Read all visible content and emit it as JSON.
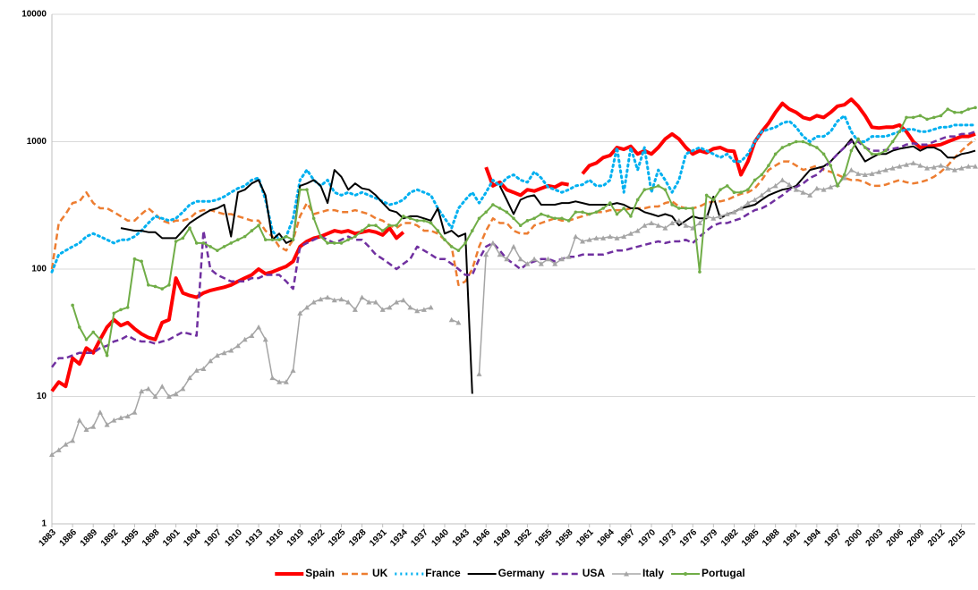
{
  "chart_data": {
    "type": "line",
    "x": [
      1883,
      1884,
      1885,
      1886,
      1887,
      1888,
      1889,
      1890,
      1891,
      1892,
      1893,
      1894,
      1895,
      1896,
      1897,
      1898,
      1899,
      1900,
      1901,
      1902,
      1903,
      1904,
      1905,
      1906,
      1907,
      1908,
      1909,
      1910,
      1911,
      1912,
      1913,
      1914,
      1915,
      1916,
      1917,
      1918,
      1919,
      1920,
      1921,
      1922,
      1923,
      1924,
      1925,
      1926,
      1927,
      1928,
      1929,
      1930,
      1931,
      1932,
      1933,
      1934,
      1935,
      1936,
      1937,
      1938,
      1939,
      1940,
      1941,
      1942,
      1943,
      1944,
      1945,
      1946,
      1947,
      1948,
      1949,
      1950,
      1951,
      1952,
      1953,
      1954,
      1955,
      1956,
      1957,
      1958,
      1959,
      1960,
      1961,
      1962,
      1963,
      1964,
      1965,
      1966,
      1967,
      1968,
      1969,
      1970,
      1971,
      1972,
      1973,
      1974,
      1975,
      1976,
      1977,
      1978,
      1979,
      1980,
      1981,
      1982,
      1983,
      1984,
      1985,
      1986,
      1987,
      1988,
      1989,
      1990,
      1991,
      1992,
      1993,
      1994,
      1995,
      1996,
      1997,
      1998,
      1999,
      2000,
      2001,
      2002,
      2003,
      2004,
      2005,
      2006,
      2007,
      2008,
      2009,
      2010,
      2011,
      2012,
      2013,
      2014,
      2015,
      2016,
      2017
    ],
    "xlim": [
      1883,
      2017
    ],
    "xticks": [
      1883,
      1886,
      1889,
      1892,
      1895,
      1898,
      1901,
      1904,
      1907,
      1910,
      1913,
      1916,
      1919,
      1922,
      1925,
      1928,
      1931,
      1934,
      1937,
      1940,
      1943,
      1946,
      1949,
      1952,
      1955,
      1958,
      1961,
      1964,
      1967,
      1970,
      1973,
      1976,
      1979,
      1982,
      1985,
      1988,
      1991,
      1994,
      1997,
      2000,
      2003,
      2006,
      2009,
      2012,
      2015
    ],
    "ylim": [
      1,
      10000
    ],
    "yticks": [
      1,
      10,
      100,
      1000,
      10000
    ],
    "log_scale": true,
    "grid": true,
    "legend": "bottom",
    "series": [
      {
        "name": "Spain",
        "color": "#ff0000",
        "width": 4,
        "dash": "solid",
        "values": [
          11,
          13,
          12,
          20,
          18,
          24,
          22,
          28,
          35,
          40,
          36,
          38,
          34,
          31,
          29,
          28,
          38,
          40,
          85,
          65,
          62,
          60,
          65,
          68,
          70,
          72,
          75,
          80,
          85,
          90,
          100,
          92,
          95,
          100,
          105,
          115,
          150,
          165,
          175,
          180,
          190,
          200,
          195,
          200,
          190,
          195,
          200,
          195,
          185,
          210,
          175,
          195,
          null,
          null,
          null,
          null,
          null,
          null,
          null,
          null,
          null,
          null,
          null,
          630,
          450,
          480,
          420,
          400,
          380,
          420,
          410,
          430,
          450,
          440,
          470,
          460,
          null,
          560,
          650,
          680,
          750,
          780,
          900,
          870,
          920,
          800,
          850,
          800,
          900,
          1050,
          1150,
          1050,
          900,
          800,
          850,
          820,
          880,
          900,
          850,
          840,
          550,
          700,
          1000,
          1200,
          1400,
          1700,
          2000,
          1800,
          1700,
          1550,
          1500,
          1600,
          1550,
          1700,
          1900,
          1950,
          2150,
          1900,
          1600,
          1300,
          1280,
          1300,
          1300,
          1350,
          1200,
          1000,
          900,
          920,
          930,
          950,
          1000,
          1050,
          1100,
          1100,
          1150
        ]
      },
      {
        "name": "UK",
        "color": "#ed7d31",
        "width": 2.5,
        "dash": "dashed",
        "values": [
          100,
          230,
          270,
          330,
          340,
          400,
          330,
          300,
          300,
          280,
          260,
          240,
          240,
          270,
          300,
          270,
          240,
          230,
          240,
          240,
          250,
          280,
          290,
          290,
          280,
          270,
          270,
          260,
          250,
          240,
          240,
          200,
          180,
          150,
          140,
          170,
          260,
          330,
          270,
          280,
          290,
          290,
          280,
          280,
          290,
          280,
          270,
          250,
          240,
          220,
          210,
          230,
          230,
          220,
          200,
          200,
          190,
          170,
          150,
          75,
          80,
          100,
          150,
          200,
          250,
          230,
          230,
          200,
          190,
          190,
          220,
          230,
          240,
          250,
          240,
          240,
          250,
          260,
          270,
          280,
          280,
          290,
          290,
          290,
          300,
          300,
          300,
          310,
          310,
          330,
          340,
          310,
          300,
          300,
          310,
          330,
          340,
          340,
          350,
          370,
          390,
          400,
          430,
          500,
          600,
          650,
          700,
          700,
          650,
          600,
          620,
          650,
          600,
          580,
          550,
          520,
          500,
          500,
          480,
          450,
          450,
          460,
          480,
          500,
          480,
          470,
          480,
          500,
          530,
          580,
          650,
          750,
          850,
          950,
          1050
        ]
      },
      {
        "name": "France",
        "color": "#00b0f0",
        "width": 3,
        "dash": "dotted",
        "values": [
          95,
          130,
          140,
          150,
          160,
          180,
          190,
          180,
          170,
          160,
          170,
          170,
          180,
          200,
          230,
          260,
          250,
          240,
          250,
          280,
          320,
          340,
          340,
          340,
          350,
          370,
          400,
          430,
          450,
          500,
          520,
          350,
          200,
          170,
          180,
          250,
          500,
          600,
          500,
          450,
          500,
          400,
          380,
          400,
          380,
          400,
          380,
          360,
          340,
          320,
          330,
          350,
          400,
          420,
          400,
          380,
          300,
          250,
          210,
          300,
          350,
          400,
          330,
          400,
          500,
          450,
          520,
          550,
          500,
          480,
          580,
          520,
          440,
          420,
          400,
          420,
          450,
          460,
          500,
          450,
          450,
          500,
          900,
          400,
          900,
          600,
          900,
          400,
          600,
          500,
          400,
          500,
          800,
          850,
          900,
          850,
          800,
          750,
          800,
          700,
          700,
          800,
          1000,
          1200,
          1250,
          1300,
          1400,
          1450,
          1300,
          1100,
          1000,
          1100,
          1100,
          1200,
          1450,
          1600,
          1200,
          1000,
          1000,
          1100,
          1100,
          1100,
          1150,
          1200,
          1250,
          1250,
          1200,
          1200,
          1250,
          1300,
          1300,
          1350,
          1350,
          1350,
          1350
        ]
      },
      {
        "name": "Germany",
        "color": "#000000",
        "width": 2,
        "dash": "solid",
        "values": [
          null,
          null,
          null,
          null,
          null,
          null,
          null,
          null,
          null,
          null,
          210,
          205,
          200,
          200,
          195,
          195,
          175,
          175,
          175,
          200,
          230,
          250,
          270,
          290,
          300,
          320,
          180,
          400,
          420,
          470,
          500,
          380,
          170,
          190,
          160,
          170,
          450,
          470,
          500,
          450,
          330,
          600,
          530,
          420,
          470,
          430,
          420,
          380,
          330,
          290,
          280,
          250,
          260,
          260,
          250,
          240,
          300,
          190,
          200,
          180,
          190,
          10.5,
          null,
          null,
          null,
          450,
          350,
          270,
          350,
          370,
          380,
          320,
          320,
          320,
          330,
          330,
          340,
          330,
          320,
          320,
          320,
          320,
          330,
          320,
          300,
          300,
          280,
          270,
          260,
          270,
          260,
          220,
          240,
          260,
          250,
          250,
          370,
          250,
          270,
          280,
          300,
          310,
          320,
          350,
          380,
          400,
          420,
          430,
          450,
          520,
          600,
          620,
          640,
          700,
          800,
          900,
          1050,
          850,
          700,
          750,
          800,
          800,
          850,
          880,
          900,
          920,
          850,
          900,
          900,
          850,
          750,
          750,
          800,
          820,
          850
        ]
      },
      {
        "name": "USA",
        "color": "#7030a0",
        "width": 2.5,
        "dash": "dashed",
        "values": [
          17,
          20,
          20,
          21,
          22,
          22,
          22,
          24,
          25,
          27,
          28,
          30,
          28,
          27,
          27,
          26,
          27,
          28,
          30,
          32,
          31,
          30,
          200,
          100,
          90,
          85,
          80,
          80,
          80,
          85,
          85,
          90,
          90,
          90,
          80,
          70,
          150,
          160,
          170,
          180,
          170,
          160,
          170,
          180,
          170,
          170,
          150,
          130,
          120,
          110,
          100,
          110,
          120,
          150,
          140,
          130,
          120,
          120,
          110,
          100,
          90,
          90,
          120,
          150,
          160,
          140,
          120,
          110,
          100,
          110,
          115,
          120,
          120,
          115,
          120,
          125,
          125,
          130,
          130,
          130,
          130,
          135,
          140,
          140,
          145,
          150,
          155,
          160,
          165,
          160,
          165,
          165,
          170,
          160,
          180,
          200,
          220,
          230,
          230,
          240,
          250,
          270,
          290,
          300,
          320,
          350,
          380,
          420,
          440,
          470,
          520,
          550,
          620,
          700,
          800,
          900,
          1000,
          1000,
          900,
          850,
          850,
          860,
          880,
          900,
          950,
          970,
          950,
          950,
          1000,
          1050,
          1100,
          1100,
          1150,
          1150,
          1200
        ]
      },
      {
        "name": "Italy",
        "color": "#a5a5a5",
        "width": 1.5,
        "dash": "solid",
        "marker": "triangle",
        "values": [
          3.5,
          3.8,
          4.2,
          4.5,
          6.5,
          5.5,
          5.8,
          7.5,
          6,
          6.5,
          6.8,
          7,
          7.5,
          11,
          11.5,
          10,
          12,
          10,
          10.5,
          11.5,
          14,
          16,
          16.5,
          19,
          21,
          22,
          23,
          25,
          28,
          30,
          35,
          28,
          14,
          13,
          13,
          16,
          45,
          50,
          55,
          58,
          60,
          57,
          58,
          55,
          48,
          60,
          55,
          55,
          48,
          50,
          55,
          57,
          50,
          47,
          48,
          50,
          null,
          null,
          40,
          38,
          null,
          null,
          15,
          130,
          160,
          130,
          120,
          150,
          120,
          110,
          120,
          110,
          120,
          110,
          120,
          125,
          180,
          165,
          170,
          175,
          175,
          180,
          175,
          180,
          190,
          200,
          220,
          230,
          220,
          210,
          230,
          240,
          220,
          210,
          230,
          260,
          250,
          260,
          270,
          280,
          300,
          330,
          350,
          380,
          420,
          450,
          500,
          460,
          420,
          400,
          380,
          430,
          420,
          440,
          460,
          520,
          600,
          560,
          550,
          560,
          580,
          600,
          620,
          640,
          660,
          680,
          650,
          620,
          630,
          650,
          620,
          600,
          620,
          640,
          640
        ]
      },
      {
        "name": "Portugal",
        "color": "#70ad47",
        "width": 2,
        "dash": "solid",
        "marker": "circle",
        "values": [
          null,
          null,
          null,
          52,
          35,
          28,
          32,
          28,
          21,
          45,
          48,
          50,
          120,
          115,
          75,
          73,
          70,
          75,
          165,
          175,
          210,
          160,
          160,
          150,
          140,
          150,
          160,
          170,
          180,
          200,
          220,
          170,
          170,
          170,
          180,
          170,
          420,
          420,
          250,
          180,
          160,
          160,
          160,
          170,
          180,
          200,
          220,
          220,
          200,
          220,
          220,
          260,
          250,
          240,
          240,
          230,
          200,
          170,
          150,
          140,
          160,
          200,
          250,
          280,
          320,
          300,
          280,
          250,
          220,
          240,
          250,
          270,
          260,
          250,
          250,
          240,
          280,
          280,
          270,
          280,
          300,
          330,
          270,
          300,
          260,
          350,
          420,
          430,
          450,
          420,
          320,
          300,
          300,
          300,
          95,
          380,
          350,
          420,
          450,
          400,
          400,
          420,
          500,
          550,
          650,
          800,
          900,
          950,
          1000,
          1000,
          950,
          900,
          800,
          650,
          450,
          550,
          850,
          1050,
          900,
          800,
          800,
          850,
          1000,
          1200,
          1550,
          1550,
          1600,
          1500,
          1550,
          1600,
          1800,
          1700,
          1700,
          1800,
          1850
        ]
      }
    ]
  }
}
